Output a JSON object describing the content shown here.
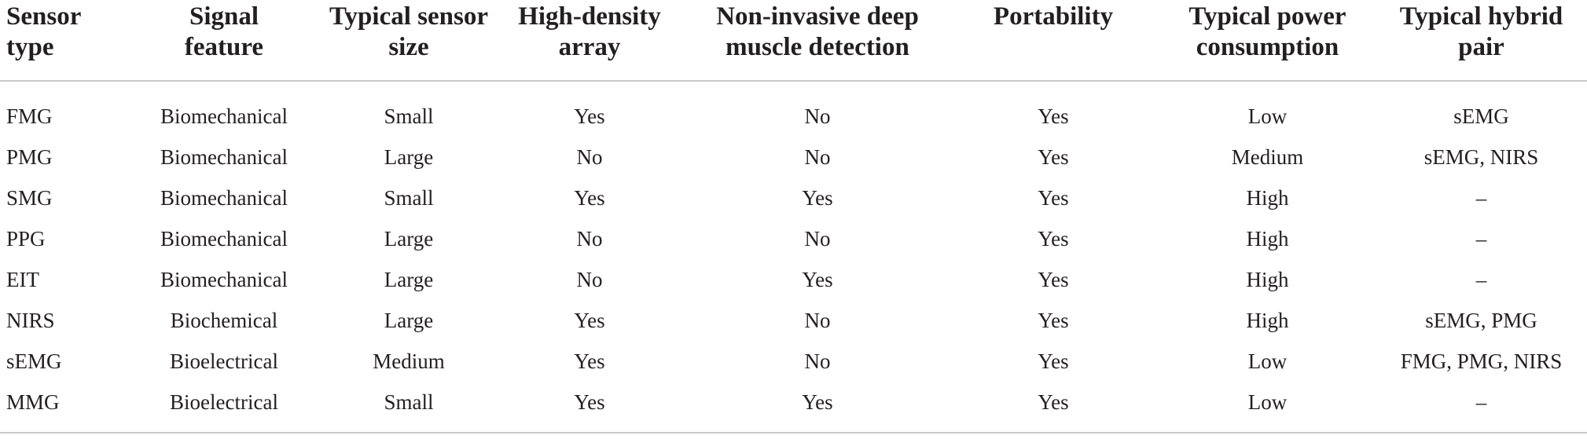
{
  "table": {
    "headers": [
      [
        "Sensor",
        "type"
      ],
      [
        "Signal",
        "feature"
      ],
      [
        "Typical sensor",
        "size"
      ],
      [
        "High-density",
        "array"
      ],
      [
        "Non-invasive deep",
        "muscle detection"
      ],
      [
        "Portability"
      ],
      [
        "Typical power",
        "consumption"
      ],
      [
        "Typical hybrid",
        "pair"
      ]
    ],
    "rows": [
      [
        "FMG",
        "Biomechanical",
        "Small",
        "Yes",
        "No",
        "Yes",
        "Low",
        "sEMG"
      ],
      [
        "PMG",
        "Biomechanical",
        "Large",
        "No",
        "No",
        "Yes",
        "Medium",
        "sEMG, NIRS"
      ],
      [
        "SMG",
        "Biomechanical",
        "Small",
        "Yes",
        "Yes",
        "Yes",
        "High",
        "–"
      ],
      [
        "PPG",
        "Biomechanical",
        "Large",
        "No",
        "No",
        "Yes",
        "High",
        "–"
      ],
      [
        "EIT",
        "Biomechanical",
        "Large",
        "No",
        "Yes",
        "Yes",
        "High",
        "–"
      ],
      [
        "NIRS",
        "Biochemical",
        "Large",
        "Yes",
        "No",
        "Yes",
        "High",
        "sEMG, PMG"
      ],
      [
        "sEMG",
        "Bioelectrical",
        "Medium",
        "Yes",
        "No",
        "Yes",
        "Low",
        "FMG, PMG, NIRS"
      ],
      [
        "MMG",
        "Bioelectrical",
        "Small",
        "Yes",
        "Yes",
        "Yes",
        "Low",
        "–"
      ]
    ]
  }
}
